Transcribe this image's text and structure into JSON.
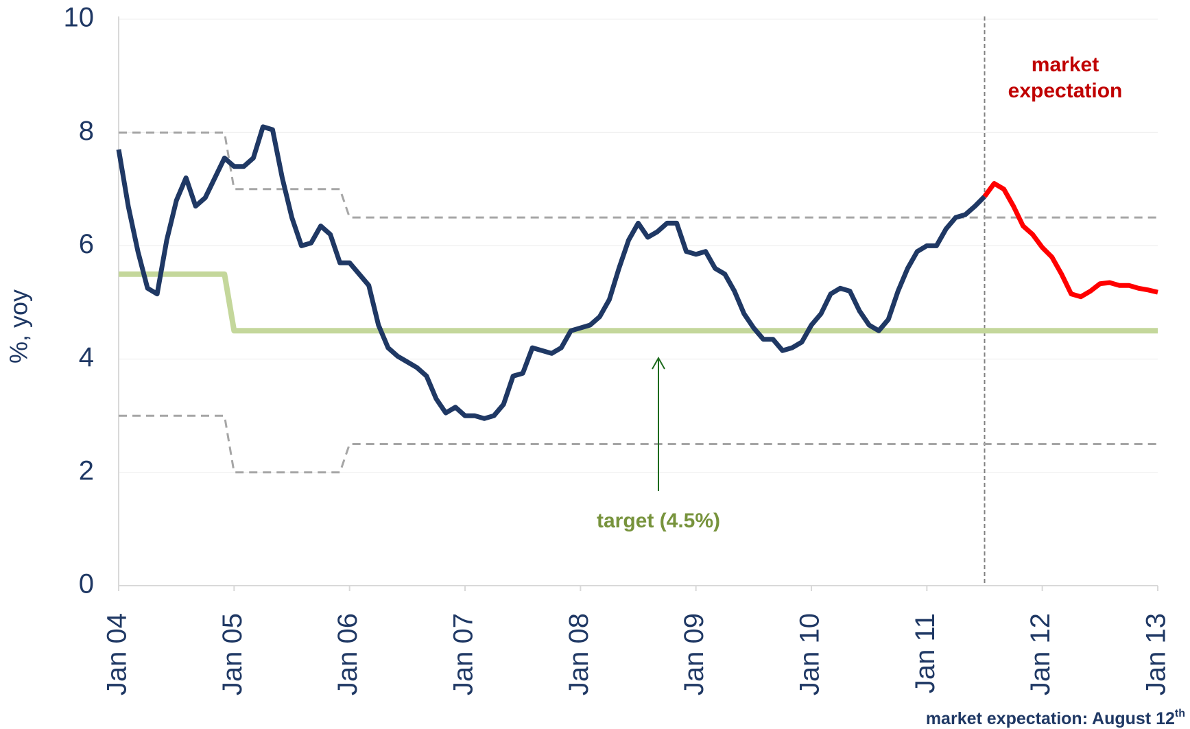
{
  "chart_data": {
    "type": "line",
    "ylabel": "%, yoy",
    "xlim": [
      "2004-01",
      "2013-01"
    ],
    "xticks": [
      {
        "value": "2004-01",
        "label": "Jan 04"
      },
      {
        "value": "2005-01",
        "label": "Jan 05"
      },
      {
        "value": "2006-01",
        "label": "Jan 06"
      },
      {
        "value": "2007-01",
        "label": "Jan 07"
      },
      {
        "value": "2008-01",
        "label": "Jan 08"
      },
      {
        "value": "2009-01",
        "label": "Jan 09"
      },
      {
        "value": "2010-01",
        "label": "Jan 10"
      },
      {
        "value": "2011-01",
        "label": "Jan 11"
      },
      {
        "value": "2012-01",
        "label": "Jan 12"
      },
      {
        "value": "2013-01",
        "label": "Jan 13"
      }
    ],
    "ylim": [
      0,
      10
    ],
    "yticks": [
      0,
      2,
      4,
      6,
      8,
      10
    ],
    "grid": true,
    "forecast_start": "2011-07",
    "series": [
      {
        "color": "#a6a6a6",
        "style": "dashed",
        "width": 3,
        "x": [
          "2004-01",
          "2004-12",
          "2005-01",
          "2005-12",
          "2006-01",
          "2013-01"
        ],
        "values": [
          8,
          8,
          7,
          7,
          6.5,
          6.5
        ]
      },
      {
        "color": "#a6a6a6",
        "style": "dashed",
        "width": 3,
        "x": [
          "2004-01",
          "2004-12",
          "2005-01",
          "2005-12",
          "2006-01",
          "2013-01"
        ],
        "values": [
          3,
          3,
          2,
          2,
          2.5,
          2.5
        ]
      },
      {
        "color": "#c4d79b",
        "style": "solid",
        "width": 8,
        "x": [
          "2004-01",
          "2004-12",
          "2005-01",
          "2013-01"
        ],
        "values": [
          5.5,
          5.5,
          4.5,
          4.5
        ]
      },
      {
        "color": "#1f3864",
        "style": "solid",
        "width": 7,
        "x": [
          "2004-01",
          "2004-02",
          "2004-03",
          "2004-04",
          "2004-05",
          "2004-06",
          "2004-07",
          "2004-08",
          "2004-09",
          "2004-10",
          "2004-11",
          "2004-12",
          "2005-01",
          "2005-02",
          "2005-03",
          "2005-04",
          "2005-05",
          "2005-06",
          "2005-07",
          "2005-08",
          "2005-09",
          "2005-10",
          "2005-11",
          "2005-12",
          "2006-01",
          "2006-02",
          "2006-03",
          "2006-04",
          "2006-05",
          "2006-06",
          "2006-07",
          "2006-08",
          "2006-09",
          "2006-10",
          "2006-11",
          "2006-12",
          "2007-01",
          "2007-02",
          "2007-03",
          "2007-04",
          "2007-05",
          "2007-06",
          "2007-07",
          "2007-08",
          "2007-09",
          "2007-10",
          "2007-11",
          "2007-12",
          "2008-01",
          "2008-02",
          "2008-03",
          "2008-04",
          "2008-05",
          "2008-06",
          "2008-07",
          "2008-08",
          "2008-09",
          "2008-10",
          "2008-11",
          "2008-12",
          "2009-01",
          "2009-02",
          "2009-03",
          "2009-04",
          "2009-05",
          "2009-06",
          "2009-07",
          "2009-08",
          "2009-09",
          "2009-10",
          "2009-11",
          "2009-12",
          "2010-01",
          "2010-02",
          "2010-03",
          "2010-04",
          "2010-05",
          "2010-06",
          "2010-07",
          "2010-08",
          "2010-09",
          "2010-10",
          "2010-11",
          "2010-12",
          "2011-01",
          "2011-02",
          "2011-03",
          "2011-04",
          "2011-05",
          "2011-06",
          "2011-07"
        ],
        "values": [
          7.7,
          6.7,
          5.9,
          5.25,
          5.15,
          6.1,
          6.8,
          7.2,
          6.7,
          6.85,
          7.2,
          7.55,
          7.4,
          7.4,
          7.55,
          8.1,
          8.05,
          7.2,
          6.5,
          6.0,
          6.05,
          6.35,
          6.2,
          5.7,
          5.7,
          5.5,
          5.3,
          4.6,
          4.2,
          4.05,
          3.95,
          3.85,
          3.7,
          3.3,
          3.05,
          3.15,
          3.0,
          3.0,
          2.95,
          3.0,
          3.2,
          3.7,
          3.75,
          4.2,
          4.15,
          4.1,
          4.2,
          4.5,
          4.55,
          4.6,
          4.75,
          5.05,
          5.6,
          6.1,
          6.4,
          6.15,
          6.25,
          6.4,
          6.4,
          5.9,
          5.85,
          5.9,
          5.6,
          5.5,
          5.2,
          4.8,
          4.55,
          4.35,
          4.35,
          4.15,
          4.2,
          4.3,
          4.6,
          4.8,
          5.15,
          5.25,
          5.2,
          4.85,
          4.6,
          4.5,
          4.7,
          5.2,
          5.6,
          5.9,
          6.0,
          6.0,
          6.3,
          6.5,
          6.55,
          6.7,
          6.87
        ]
      },
      {
        "color": "#ff0000",
        "style": "solid",
        "width": 7,
        "x": [
          "2011-07",
          "2011-08",
          "2011-09",
          "2011-10",
          "2011-11",
          "2011-12",
          "2012-01",
          "2012-02",
          "2012-03",
          "2012-04",
          "2012-05",
          "2012-06",
          "2012-07",
          "2012-08",
          "2012-09",
          "2012-10",
          "2012-11",
          "2012-12",
          "2013-01"
        ],
        "values": [
          6.87,
          7.1,
          7.0,
          6.7,
          6.35,
          6.2,
          5.97,
          5.8,
          5.5,
          5.15,
          5.1,
          5.2,
          5.33,
          5.35,
          5.3,
          5.3,
          5.25,
          5.22,
          5.18
        ]
      }
    ],
    "annotations": [
      {
        "text": "market",
        "color": "#c00000"
      },
      {
        "text": "expectation",
        "color": "#c00000"
      },
      {
        "text": "target (4.5%)",
        "color": "#77933c"
      }
    ],
    "footnote": {
      "text": "market expectation: August 12",
      "sup": "th",
      "color": "#1f3864"
    }
  }
}
